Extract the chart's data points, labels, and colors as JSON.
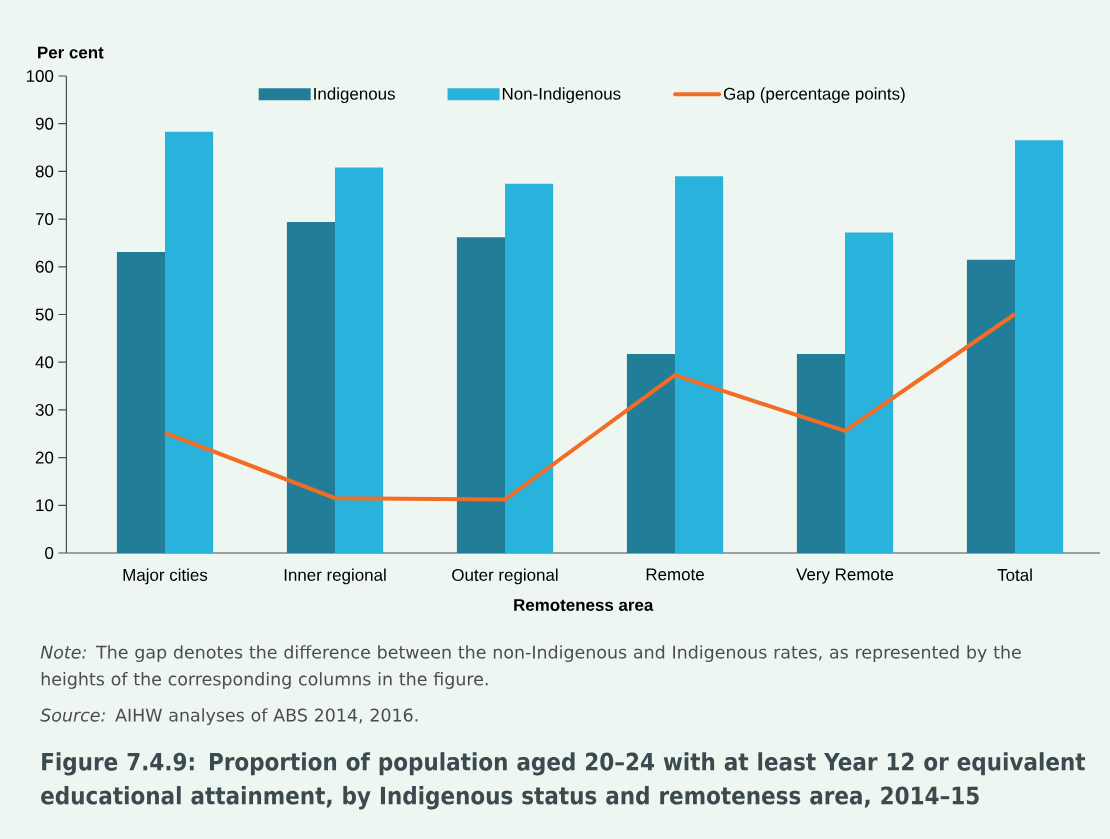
{
  "chart_data": {
    "type": "bar",
    "title": "Figure 7.4.9: Proportion of population aged 20–24 with at least Year 12 or equivalent educational attainment, by Indigenous status and remoteness area, 2014–15",
    "xlabel": "Remoteness area",
    "ylabel": "Per cent",
    "categories": [
      "Major cities",
      "Inner regional",
      "Outer regional",
      "Remote",
      "Very Remote",
      "Total"
    ],
    "series": [
      {
        "name": "Indigenous",
        "color": "#227e98",
        "values": [
          63.1,
          69.4,
          66.2,
          41.7,
          41.7,
          61.5
        ]
      },
      {
        "name": "Non-Indigenous",
        "color": "#29b3dc",
        "values": [
          88.3,
          80.8,
          77.4,
          79.0,
          67.2,
          86.5
        ]
      },
      {
        "name": "Gap (percentage points)",
        "type": "line",
        "color": "#f26c23",
        "values": [
          25.2,
          11.5,
          11.2,
          37.3,
          25.6,
          50.1
        ]
      }
    ],
    "ylim": [
      0,
      100
    ],
    "yticks": [
      0,
      10,
      20,
      30,
      40,
      50,
      60,
      70,
      80,
      90,
      100
    ],
    "legend": "top",
    "annotations": [
      "*Note:* The gap denotes the difference between the non-Indigenous and Indigenous rates, as represented by the heights of the corresponding columns in the figure.",
      "*Source:* AIHW analyses of ABS 2014, 2016."
    ]
  }
}
